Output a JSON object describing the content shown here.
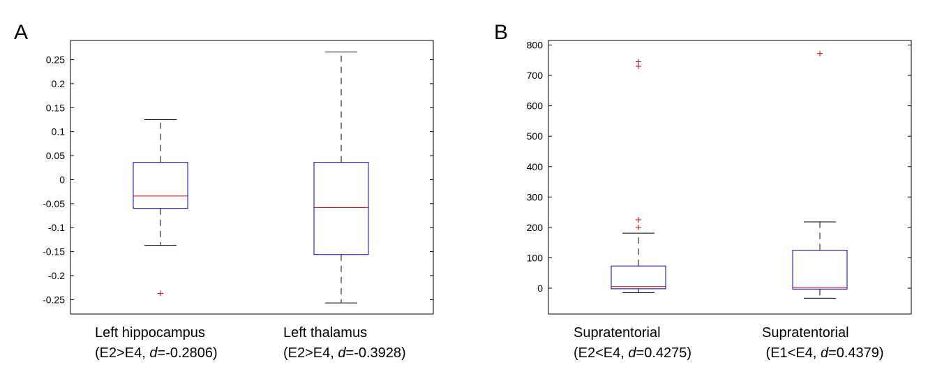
{
  "chart_data": [
    {
      "panel": "A",
      "type": "box",
      "ylim": [
        -0.28,
        0.29
      ],
      "yticks": [
        "0.25",
        "0.2",
        "0.15",
        "0.1",
        "0.05",
        "0",
        "-0.05",
        "-0.1",
        "-0.15",
        "-0.2",
        "-0.25"
      ],
      "categories": [
        {
          "label_line1": "Left hippocampus",
          "label_pre": "(E2>E4, ",
          "label_d": "d",
          "label_post": "=-0.2806)",
          "whisker_low": -0.137,
          "q1": -0.06,
          "median": -0.034,
          "q3": 0.036,
          "whisker_high": 0.125,
          "outliers": [
            -0.237
          ]
        },
        {
          "label_line1": "Left thalamus",
          "label_pre": "(E2>E4, ",
          "label_d": "d",
          "label_post": "=-0.3928)",
          "whisker_low": -0.257,
          "q1": -0.156,
          "median": -0.058,
          "q3": 0.036,
          "whisker_high": 0.266,
          "outliers": []
        }
      ]
    },
    {
      "panel": "B",
      "type": "box",
      "ylim": [
        -85,
        815
      ],
      "yticks": [
        "800",
        "700",
        "600",
        "500",
        "400",
        "300",
        "200",
        "100",
        "0"
      ],
      "categories": [
        {
          "label_line1": "Supratentorial",
          "label_pre": "(E2<E4, ",
          "label_d": "d",
          "label_post": "=0.4275)",
          "whisker_low": -15,
          "q1": -2,
          "median": 5,
          "q3": 73,
          "whisker_high": 181,
          "outliers": [
            200,
            225,
            730,
            745
          ]
        },
        {
          "label_line1": "Supratentorial",
          "label_pre": " (E1<E4, ",
          "label_d": "d",
          "label_post": "=0.4379)",
          "whisker_low": -33,
          "q1": -3,
          "median": 2,
          "q3": 125,
          "whisker_high": 218,
          "outliers": [
            772
          ]
        }
      ]
    }
  ],
  "colors": {
    "box": "#0000c0",
    "median": "#d00000",
    "outlier": "#d00000",
    "whisker": "#000000",
    "axis": "#000000"
  }
}
